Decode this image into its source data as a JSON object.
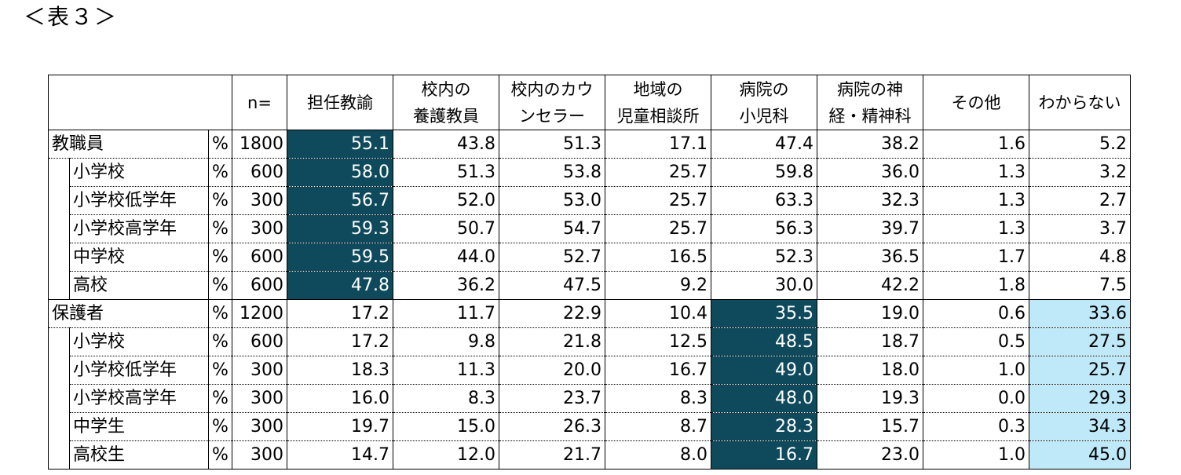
{
  "caption": "＜表３＞",
  "table": {
    "n_header": "n=",
    "columns": [
      [
        "担任教諭"
      ],
      [
        "校内の",
        "養護教員"
      ],
      [
        "校内のカウ",
        "ンセラー"
      ],
      [
        "地域の",
        "児童相談所"
      ],
      [
        "病院の",
        "小児科"
      ],
      [
        "病院の神",
        "経・精神科"
      ],
      [
        "その他"
      ],
      [
        "わからない"
      ]
    ],
    "groups": [
      {
        "label": "教職員",
        "pct": "%",
        "n": "1800",
        "values": [
          "55.1",
          "43.8",
          "51.3",
          "17.1",
          "47.4",
          "38.2",
          "1.6",
          "5.2"
        ],
        "rows": [
          {
            "label": "小学校",
            "pct": "%",
            "n": "600",
            "values": [
              "58.0",
              "51.3",
              "53.8",
              "25.7",
              "59.8",
              "36.0",
              "1.3",
              "3.2"
            ]
          },
          {
            "label": "小学校低学年",
            "pct": "%",
            "n": "300",
            "values": [
              "56.7",
              "52.0",
              "53.0",
              "25.7",
              "63.3",
              "32.3",
              "1.3",
              "2.7"
            ]
          },
          {
            "label": "小学校高学年",
            "pct": "%",
            "n": "300",
            "values": [
              "59.3",
              "50.7",
              "54.7",
              "25.7",
              "56.3",
              "39.7",
              "1.3",
              "3.7"
            ]
          },
          {
            "label": "中学校",
            "pct": "%",
            "n": "600",
            "values": [
              "59.5",
              "44.0",
              "52.7",
              "16.5",
              "52.3",
              "36.5",
              "1.7",
              "4.8"
            ]
          },
          {
            "label": "高校",
            "pct": "%",
            "n": "600",
            "values": [
              "47.8",
              "36.2",
              "47.5",
              "9.2",
              "30.0",
              "42.2",
              "1.8",
              "7.5"
            ]
          }
        ]
      },
      {
        "label": "保護者",
        "pct": "%",
        "n": "1200",
        "values": [
          "17.2",
          "11.7",
          "22.9",
          "10.4",
          "35.5",
          "19.0",
          "0.6",
          "33.6"
        ],
        "rows": [
          {
            "label": "小学校",
            "pct": "%",
            "n": "600",
            "values": [
              "17.2",
              "9.8",
              "21.8",
              "12.5",
              "48.5",
              "18.7",
              "0.5",
              "27.5"
            ]
          },
          {
            "label": "小学校低学年",
            "pct": "%",
            "n": "300",
            "values": [
              "18.3",
              "11.3",
              "20.0",
              "16.7",
              "49.0",
              "18.0",
              "1.0",
              "25.7"
            ]
          },
          {
            "label": "小学校高学年",
            "pct": "%",
            "n": "300",
            "values": [
              "16.0",
              "8.3",
              "23.7",
              "8.3",
              "48.0",
              "19.3",
              "0.0",
              "29.3"
            ]
          },
          {
            "label": "中学生",
            "pct": "%",
            "n": "300",
            "values": [
              "19.7",
              "15.0",
              "26.3",
              "8.7",
              "28.3",
              "15.7",
              "0.3",
              "34.3"
            ]
          },
          {
            "label": "高校生",
            "pct": "%",
            "n": "300",
            "values": [
              "14.7",
              "12.0",
              "21.7",
              "8.0",
              "16.7",
              "23.0",
              "1.0",
              "45.0"
            ]
          }
        ]
      }
    ],
    "highlight_dark_color": "#0f4a5c",
    "highlight_light_color": "#bfe9f8"
  }
}
